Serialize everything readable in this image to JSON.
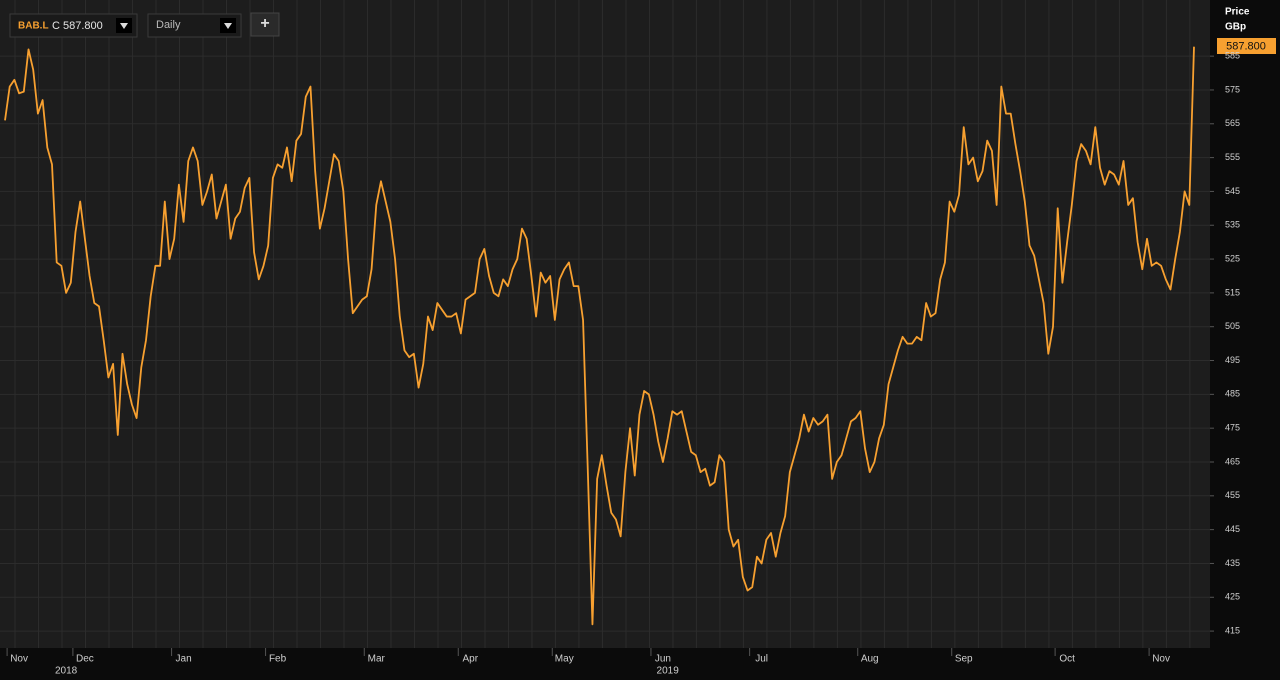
{
  "chart_data": {
    "type": "line",
    "toolbar": {
      "symbol": "BAB.L",
      "close_label": "C 587.800",
      "interval": "Daily",
      "add_button": "+"
    },
    "y_axis_title": "Price",
    "y_axis_unit": "GBp",
    "last_label": "587.800",
    "color": "#f7a030",
    "grid": true,
    "ylim": [
      410,
      601.6
    ],
    "yticks": [
      415,
      425,
      435,
      445,
      455,
      465,
      475,
      485,
      495,
      505,
      515,
      525,
      535,
      545,
      555,
      565,
      575,
      585
    ],
    "categories": [
      null,
      null,
      null,
      "Nov",
      null,
      null,
      null,
      null,
      null,
      null,
      null,
      null,
      null,
      null,
      null,
      null,
      null,
      "Dec",
      null,
      null,
      null,
      null,
      null,
      null,
      null,
      null,
      null,
      null,
      null,
      null,
      null,
      null,
      null,
      null,
      null,
      null,
      null,
      null,
      "Jan",
      null,
      null,
      null,
      null,
      null,
      null,
      null,
      null,
      null,
      null,
      null,
      null,
      null,
      null,
      null,
      null,
      null,
      null,
      null,
      "Feb",
      null,
      null,
      null,
      null,
      null,
      null,
      null,
      null,
      null,
      null,
      null,
      null,
      null,
      null,
      null,
      null,
      null,
      null,
      null,
      null,
      "Mar",
      null,
      null,
      null,
      null,
      null,
      null,
      null,
      null,
      null,
      null,
      null,
      null,
      null,
      null,
      null,
      null,
      null,
      null,
      null,
      "Apr",
      null,
      null,
      null,
      null,
      null,
      null,
      null,
      null,
      null,
      null,
      null,
      null,
      null,
      null,
      null,
      null,
      null,
      null,
      null,
      "May",
      null,
      null,
      null,
      null,
      null,
      null,
      null,
      null,
      null,
      null,
      null,
      null,
      null,
      null,
      null,
      null,
      null,
      null,
      null,
      null,
      "Jun",
      null,
      null,
      null,
      null,
      null,
      null,
      null,
      null,
      null,
      null,
      null,
      null,
      null,
      null,
      null,
      null,
      null,
      null,
      null,
      null,
      "Jul",
      null,
      null,
      null,
      null,
      null,
      null,
      null,
      null,
      null,
      null,
      null,
      null,
      null,
      null,
      null,
      null,
      null,
      null,
      null,
      null,
      null,
      null,
      "Aug",
      null,
      null,
      null,
      null,
      null,
      null,
      null,
      null,
      null,
      null,
      null,
      null,
      null,
      null,
      null,
      null,
      null,
      null,
      null,
      "Sep",
      null,
      null,
      null,
      null,
      null,
      null,
      null,
      null,
      null,
      null,
      null,
      null,
      null,
      null,
      null,
      null,
      null,
      null,
      null,
      null,
      null,
      "Oct",
      null,
      null,
      null,
      null,
      null,
      null,
      null,
      null,
      null,
      null,
      null,
      null,
      null,
      null,
      null,
      null,
      null,
      null,
      null,
      "Nov",
      null,
      null,
      null,
      null,
      null,
      null,
      null
    ],
    "year_categories": [
      null,
      null,
      null,
      null,
      null,
      null,
      null,
      null,
      null,
      null,
      null,
      null,
      null,
      "2018",
      null,
      null,
      null,
      null,
      null,
      null,
      null,
      null,
      null,
      null,
      null,
      null,
      null,
      null,
      null,
      null,
      null,
      null,
      null,
      null,
      null,
      null,
      null,
      null,
      null,
      null,
      null,
      null,
      null,
      null,
      null,
      null,
      null,
      null,
      null,
      null,
      null,
      null,
      null,
      null,
      null,
      null,
      null,
      null,
      null,
      null,
      null,
      null,
      null,
      null,
      null,
      null,
      null,
      null,
      null,
      null,
      null,
      null,
      null,
      null,
      null,
      null,
      null,
      null,
      null,
      null,
      null,
      null,
      null,
      null,
      null,
      null,
      null,
      null,
      null,
      null,
      null,
      null,
      null,
      null,
      null,
      null,
      null,
      null,
      null,
      null,
      null,
      null,
      null,
      null,
      null,
      null,
      null,
      null,
      null,
      null,
      null,
      null,
      null,
      null,
      null,
      null,
      null,
      null,
      null,
      null,
      null,
      null,
      null,
      null,
      null,
      null,
      null,
      null,
      null,
      null,
      null,
      null,
      null,
      null,
      null,
      null,
      null,
      null,
      null,
      null,
      null,
      "2019",
      null,
      null,
      null,
      null,
      null,
      null,
      null,
      null,
      null,
      null,
      null,
      null,
      null,
      null,
      null,
      null,
      null,
      null,
      null,
      null,
      null,
      null,
      null,
      null,
      null,
      null,
      null,
      null,
      null,
      null,
      null,
      null,
      null,
      null,
      null,
      null,
      null,
      null,
      null,
      null,
      null,
      null,
      null,
      null,
      null,
      null,
      null,
      null,
      null,
      null,
      null,
      null,
      null,
      null,
      null,
      null,
      null,
      null,
      null,
      null,
      null,
      null,
      null,
      null,
      null,
      null,
      null,
      null,
      null,
      null,
      null,
      null,
      null,
      null,
      null,
      null,
      null,
      null,
      null,
      null,
      null,
      null,
      null,
      null,
      null,
      null,
      null,
      null,
      null,
      null,
      null,
      null,
      null,
      null,
      null,
      null,
      null,
      null,
      null,
      null,
      null,
      null,
      null,
      null,
      null,
      null,
      null,
      null,
      null,
      null,
      null,
      null,
      null,
      null,
      null,
      null,
      null,
      null,
      null,
      null,
      null,
      null,
      null,
      null,
      null,
      null,
      null,
      null,
      null,
      null
    ],
    "values": [
      566,
      576,
      578,
      574,
      574.5,
      587,
      581,
      568,
      572,
      558,
      553,
      524,
      523,
      515,
      518,
      533,
      542,
      531,
      520,
      512,
      511,
      501,
      490,
      494,
      473,
      497,
      488,
      482,
      478,
      493,
      501,
      514,
      523,
      523,
      542,
      525,
      531,
      547,
      536,
      554,
      558,
      554,
      541,
      545,
      550,
      537,
      542,
      547,
      531,
      537,
      539,
      546,
      549,
      527,
      519,
      523,
      529,
      549,
      553,
      552,
      558,
      548,
      560,
      562,
      573,
      576,
      551,
      534,
      540,
      548,
      556,
      554,
      545,
      525,
      509,
      511,
      513,
      514,
      522,
      541,
      548,
      542,
      536,
      525,
      508,
      498,
      496,
      497,
      487,
      494,
      508,
      504,
      512,
      510,
      508,
      508,
      509,
      503,
      513,
      514,
      515,
      525,
      528,
      520,
      515,
      514,
      519,
      517,
      522,
      525,
      534,
      531,
      520,
      508,
      521,
      518,
      520,
      507,
      519,
      522,
      524,
      517,
      517,
      507,
      463,
      417,
      460,
      467,
      458,
      450,
      448,
      443,
      462,
      475,
      461,
      479,
      486,
      485,
      479,
      471,
      465,
      472,
      480,
      479,
      480,
      474,
      468,
      467,
      462,
      463,
      458,
      459,
      467,
      465,
      445,
      440,
      442,
      431,
      427,
      428,
      437,
      435,
      442,
      444,
      437,
      444,
      449,
      462,
      467,
      472,
      479,
      474,
      478,
      476,
      477,
      479,
      460,
      465,
      467,
      472,
      477,
      478,
      480,
      469,
      462,
      465,
      472,
      476,
      488,
      493,
      498,
      502,
      500,
      500,
      502,
      501,
      512,
      508,
      509,
      519,
      524,
      542,
      539,
      544,
      564,
      553,
      555,
      548,
      551,
      560,
      557,
      541,
      576,
      568,
      568,
      559,
      551,
      542,
      529,
      526,
      519,
      512,
      497,
      505,
      540,
      518,
      530,
      541,
      554,
      559,
      557,
      553,
      564,
      552,
      547,
      551,
      550,
      547,
      554,
      541,
      543,
      530,
      522,
      531,
      523,
      524,
      523,
      519,
      516,
      525,
      533,
      545,
      541,
      587.8
    ]
  }
}
